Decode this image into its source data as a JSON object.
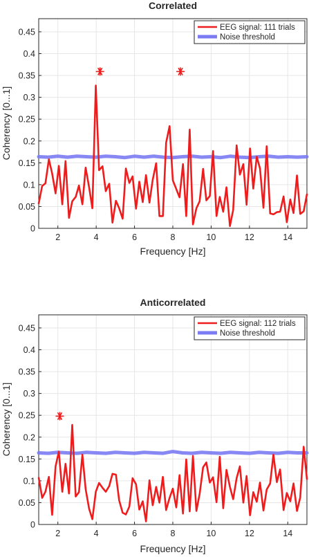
{
  "chart_data": [
    {
      "type": "line",
      "title": "Correlated",
      "xlabel": "Frequency [Hz]",
      "ylabel": "Coherency [0...1]",
      "xlim": [
        1,
        15
      ],
      "ylim": [
        0,
        0.48
      ],
      "xticks": [
        2,
        4,
        6,
        8,
        10,
        12,
        14
      ],
      "yticks": [
        0,
        0.05,
        0.1,
        0.15,
        0.2,
        0.25,
        0.3,
        0.35,
        0.4,
        0.45
      ],
      "xtick_labels": [
        "2",
        "4",
        "6",
        "8",
        "10",
        "12",
        "14"
      ],
      "ytick_labels": [
        "0",
        "0.05",
        "0.1",
        "0.15",
        "0.2",
        "0.25",
        "0.3",
        "0.35",
        "0.4",
        "0.45"
      ],
      "grid": true,
      "legend_position": "top-right",
      "series": [
        {
          "name": "EEG signal: 111 trials",
          "color": "#ee1c1c",
          "x": [
            1.0,
            1.18,
            1.35,
            1.53,
            1.7,
            1.88,
            2.05,
            2.23,
            2.4,
            2.58,
            2.75,
            2.93,
            3.1,
            3.28,
            3.45,
            3.63,
            3.8,
            3.98,
            4.15,
            4.33,
            4.5,
            4.68,
            4.85,
            5.03,
            5.2,
            5.38,
            5.55,
            5.73,
            5.9,
            6.08,
            6.25,
            6.43,
            6.6,
            6.78,
            6.95,
            7.13,
            7.3,
            7.48,
            7.65,
            7.83,
            8.0,
            8.18,
            8.35,
            8.53,
            8.7,
            8.88,
            9.05,
            9.23,
            9.4,
            9.58,
            9.75,
            9.93,
            10.1,
            10.28,
            10.45,
            10.63,
            10.8,
            10.98,
            11.15,
            11.33,
            11.5,
            11.68,
            11.85,
            12.03,
            12.2,
            12.38,
            12.55,
            12.73,
            12.9,
            13.08,
            13.25,
            13.43,
            13.6,
            13.78,
            13.95,
            14.13,
            14.3,
            14.48,
            14.65,
            14.83,
            15.0
          ],
          "y": [
            0.057,
            0.097,
            0.103,
            0.158,
            0.126,
            0.08,
            0.143,
            0.055,
            0.154,
            0.024,
            0.062,
            0.072,
            0.098,
            0.055,
            0.139,
            0.094,
            0.046,
            0.327,
            0.133,
            0.142,
            0.085,
            0.102,
            0.013,
            0.063,
            0.046,
            0.022,
            0.137,
            0.104,
            0.119,
            0.045,
            0.107,
            0.06,
            0.122,
            0.059,
            0.111,
            0.149,
            0.028,
            0.028,
            0.196,
            0.234,
            0.11,
            0.09,
            0.071,
            0.147,
            0.028,
            0.226,
            0.009,
            0.046,
            0.062,
            0.136,
            0.064,
            0.074,
            0.177,
            0.028,
            0.072,
            0.038,
            0.094,
            0.005,
            0.042,
            0.19,
            0.123,
            0.147,
            0.054,
            0.183,
            0.091,
            0.164,
            0.137,
            0.047,
            0.188,
            0.034,
            0.032,
            0.037,
            0.038,
            0.073,
            0.014,
            0.066,
            0.035,
            0.121,
            0.033,
            0.039,
            0.078
          ]
        },
        {
          "name": "Noise threshold",
          "color": "#7b7bf4",
          "x": [
            1.0,
            1.5,
            2.0,
            2.5,
            3.0,
            3.5,
            4.0,
            4.5,
            5.0,
            5.5,
            6.0,
            6.5,
            7.0,
            7.5,
            8.0,
            8.5,
            9.0,
            9.5,
            10.0,
            10.5,
            11.0,
            11.5,
            12.0,
            12.5,
            13.0,
            13.5,
            14.0,
            14.5,
            15.0
          ],
          "y": [
            0.164,
            0.163,
            0.165,
            0.163,
            0.165,
            0.164,
            0.163,
            0.165,
            0.164,
            0.162,
            0.165,
            0.163,
            0.165,
            0.163,
            0.162,
            0.164,
            0.165,
            0.163,
            0.164,
            0.162,
            0.165,
            0.163,
            0.162,
            0.164,
            0.165,
            0.163,
            0.164,
            0.163,
            0.164
          ]
        }
      ],
      "markers": {
        "symbol": "*",
        "color": "#ee1c1c",
        "points": [
          {
            "x": 4.2,
            "y": 0.359
          },
          {
            "x": 8.4,
            "y": 0.359
          }
        ]
      }
    },
    {
      "type": "line",
      "title": "Anticorrelated",
      "xlabel": "Frequency [Hz]",
      "ylabel": "Coherency [0...1]",
      "xlim": [
        1,
        15
      ],
      "ylim": [
        0,
        0.48
      ],
      "xticks": [
        2,
        4,
        6,
        8,
        10,
        12,
        14
      ],
      "yticks": [
        0,
        0.05,
        0.1,
        0.15,
        0.2,
        0.25,
        0.3,
        0.35,
        0.4,
        0.45
      ],
      "xtick_labels": [
        "2",
        "4",
        "6",
        "8",
        "10",
        "12",
        "14"
      ],
      "ytick_labels": [
        "0",
        "0.05",
        "0.1",
        "0.15",
        "0.2",
        "0.25",
        "0.3",
        "0.35",
        "0.4",
        "0.45"
      ],
      "grid": true,
      "legend_position": "top-right",
      "series": [
        {
          "name": "EEG signal: 112 trials",
          "color": "#ee1c1c",
          "x": [
            1.0,
            1.18,
            1.35,
            1.53,
            1.7,
            1.88,
            2.05,
            2.23,
            2.4,
            2.58,
            2.75,
            2.93,
            3.1,
            3.28,
            3.45,
            3.63,
            3.8,
            3.98,
            4.15,
            4.33,
            4.5,
            4.68,
            4.85,
            5.03,
            5.2,
            5.38,
            5.55,
            5.73,
            5.9,
            6.08,
            6.25,
            6.43,
            6.6,
            6.78,
            6.95,
            7.13,
            7.3,
            7.48,
            7.65,
            7.83,
            8.0,
            8.18,
            8.35,
            8.53,
            8.7,
            8.88,
            9.05,
            9.23,
            9.4,
            9.58,
            9.75,
            9.93,
            10.1,
            10.28,
            10.45,
            10.63,
            10.8,
            10.98,
            11.15,
            11.33,
            11.5,
            11.68,
            11.85,
            12.03,
            12.2,
            12.38,
            12.55,
            12.73,
            12.9,
            13.08,
            13.25,
            13.43,
            13.6,
            13.78,
            13.95,
            14.13,
            14.3,
            14.48,
            14.65,
            14.83,
            15.0
          ],
          "y": [
            0.107,
            0.061,
            0.075,
            0.109,
            0.022,
            0.133,
            0.167,
            0.075,
            0.139,
            0.071,
            0.228,
            0.064,
            0.074,
            0.16,
            0.081,
            0.036,
            0.012,
            0.075,
            0.095,
            0.084,
            0.075,
            0.088,
            0.116,
            0.114,
            0.055,
            0.027,
            0.023,
            0.041,
            0.106,
            0.092,
            0.034,
            0.053,
            0.007,
            0.101,
            0.044,
            0.086,
            0.05,
            0.109,
            0.033,
            0.061,
            0.082,
            0.039,
            0.113,
            0.025,
            0.149,
            0.03,
            0.157,
            0.031,
            0.07,
            0.131,
            0.142,
            0.096,
            0.108,
            0.051,
            0.155,
            0.037,
            0.125,
            0.086,
            0.058,
            0.106,
            0.133,
            0.05,
            0.111,
            0.021,
            0.074,
            0.052,
            0.096,
            0.032,
            0.08,
            0.094,
            0.16,
            0.097,
            0.126,
            0.033,
            0.072,
            0.053,
            0.094,
            0.031,
            0.062,
            0.178,
            0.104
          ]
        },
        {
          "name": "Noise threshold",
          "color": "#7b7bf4",
          "x": [
            1.0,
            1.5,
            2.0,
            2.5,
            3.0,
            3.5,
            4.0,
            4.5,
            5.0,
            5.5,
            6.0,
            6.5,
            7.0,
            7.5,
            8.0,
            8.5,
            9.0,
            9.5,
            10.0,
            10.5,
            11.0,
            11.5,
            12.0,
            12.5,
            13.0,
            13.5,
            14.0,
            14.5,
            15.0
          ],
          "y": [
            0.164,
            0.163,
            0.165,
            0.164,
            0.163,
            0.165,
            0.164,
            0.163,
            0.165,
            0.164,
            0.163,
            0.165,
            0.164,
            0.163,
            0.167,
            0.164,
            0.163,
            0.165,
            0.164,
            0.163,
            0.165,
            0.164,
            0.163,
            0.165,
            0.164,
            0.163,
            0.165,
            0.164,
            0.164
          ]
        }
      ],
      "markers": {
        "symbol": "*",
        "color": "#ee1c1c",
        "points": [
          {
            "x": 2.1,
            "y": 0.248
          }
        ]
      }
    }
  ]
}
